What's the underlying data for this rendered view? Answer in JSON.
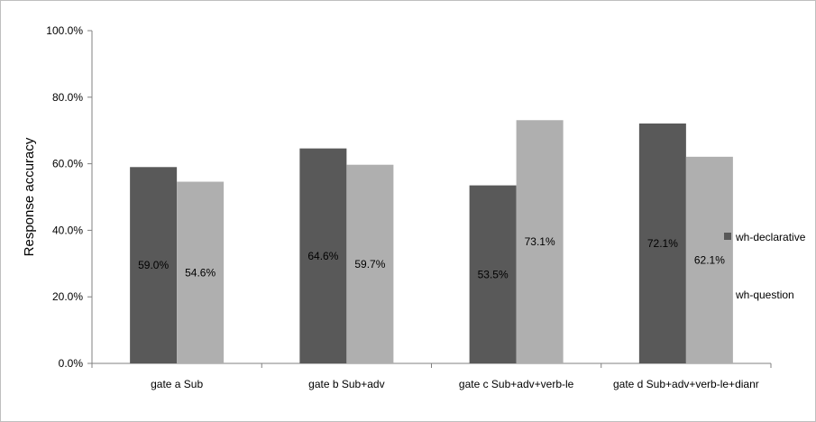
{
  "chart_data": {
    "type": "bar",
    "ylabel": "Response accuracy",
    "ylim": [
      0,
      100
    ],
    "yticks": [
      "0.0%",
      "20.0%",
      "40.0%",
      "60.0%",
      "80.0%",
      "100.0%"
    ],
    "categories": [
      "gate a Sub",
      "gate b Sub+adv",
      "gate c Sub+adv+verb-le",
      "gate d Sub+adv+verb-le+dianr"
    ],
    "series": [
      {
        "name": "wh-declarative",
        "values": [
          59.0,
          64.6,
          53.5,
          72.1
        ],
        "labels": [
          "59.0%",
          "64.6%",
          "53.5%",
          "72.1%"
        ],
        "color": "#595959"
      },
      {
        "name": "wh-question",
        "values": [
          54.6,
          59.7,
          73.1,
          62.1
        ],
        "labels": [
          "54.6%",
          "59.7%",
          "73.1%",
          "62.1%"
        ],
        "color": "#afafaf"
      }
    ],
    "legend": "right",
    "grid": false
  }
}
